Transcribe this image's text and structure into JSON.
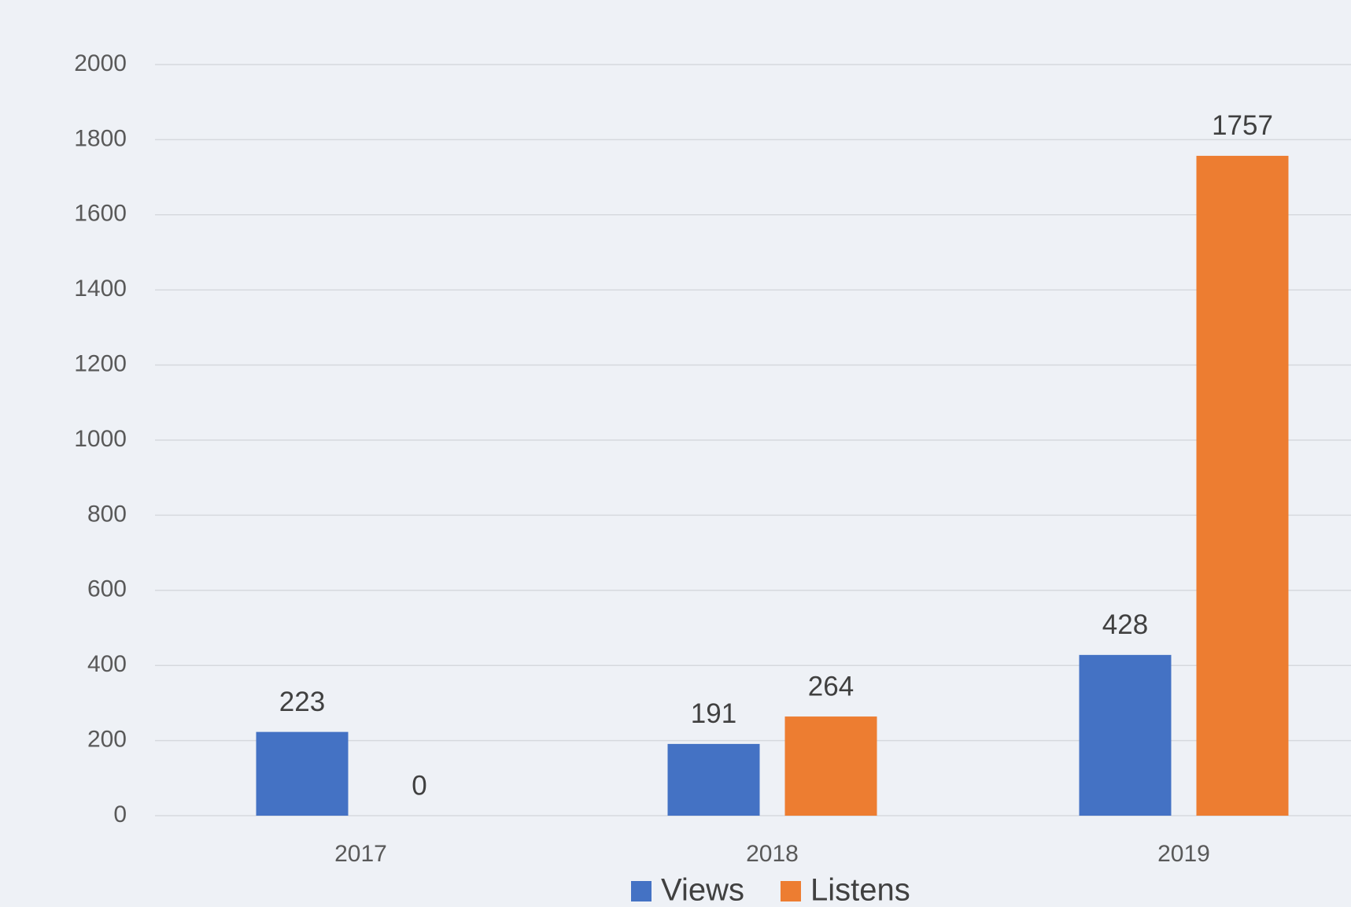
{
  "chart_data": {
    "type": "bar",
    "categories": [
      "2017",
      "2018",
      "2019"
    ],
    "series": [
      {
        "name": "Views",
        "color": "#4472c4",
        "values": [
          223,
          191,
          428
        ]
      },
      {
        "name": "Listens",
        "color": "#ed7d31",
        "values": [
          0,
          264,
          1757
        ]
      }
    ],
    "ylim": [
      0,
      2000
    ],
    "yticks": [
      0,
      200,
      400,
      600,
      800,
      1000,
      1200,
      1400,
      1600,
      1800,
      2000
    ],
    "grid": true,
    "legend": "bottom"
  }
}
